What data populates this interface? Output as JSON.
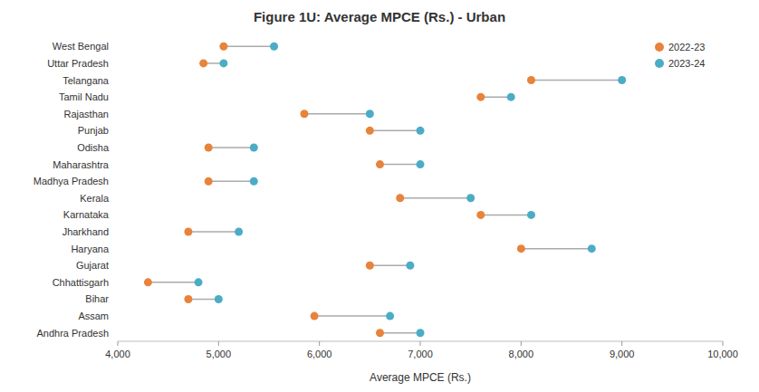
{
  "chart_data": {
    "type": "dumbbell",
    "title": "Figure 1U: Average MPCE (Rs.) - Urban",
    "x_label": "Average MPCE (Rs.)",
    "orientation": "horizontal",
    "categories": [
      "West Bengal",
      "Uttar Pradesh",
      "Telangana",
      "Tamil Nadu",
      "Rajasthan",
      "Punjab",
      "Odisha",
      "Maharashtra",
      "Madhya Pradesh",
      "Kerala",
      "Karnataka",
      "Jharkhand",
      "Haryana",
      "Gujarat",
      "Chhattisgarh",
      "Bihar",
      "Assam",
      "Andhra Pradesh"
    ],
    "series": [
      {
        "name": "2022-23",
        "color": "#E8833A",
        "values": [
          5050,
          4850,
          8100,
          7600,
          5850,
          6500,
          4900,
          6600,
          4900,
          6800,
          7600,
          4700,
          8000,
          6500,
          4300,
          4700,
          5950,
          6600
        ]
      },
      {
        "name": "2023-24",
        "color": "#4BACC6",
        "values": [
          5550,
          5050,
          9000,
          7900,
          6500,
          7000,
          5350,
          7000,
          5350,
          7500,
          8100,
          5200,
          8700,
          6900,
          4800,
          5000,
          6700,
          7000
        ]
      }
    ],
    "xlim": [
      4000,
      10000
    ],
    "xticks": [
      {
        "value": 4000,
        "label": "4,000"
      },
      {
        "value": 5000,
        "label": "5,000"
      },
      {
        "value": 6000,
        "label": "6,000"
      },
      {
        "value": 7000,
        "label": "7,000"
      },
      {
        "value": 8000,
        "label": "8,000"
      },
      {
        "value": 9000,
        "label": "9,000"
      },
      {
        "value": 10000,
        "label": "10,000"
      }
    ],
    "grid": false,
    "legend": "upper right"
  }
}
